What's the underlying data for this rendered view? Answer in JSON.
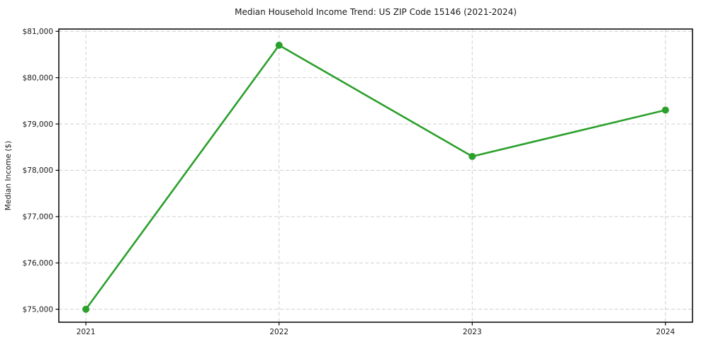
{
  "chart_data": {
    "type": "line",
    "title": "Median Household Income Trend: US ZIP Code 15146 (2021-2024)",
    "xlabel": "",
    "ylabel": "Median Income ($)",
    "x": [
      2021,
      2022,
      2023,
      2024
    ],
    "series": [
      {
        "name": "Median Household Income",
        "values": [
          75000,
          80700,
          78300,
          79300
        ],
        "color": "#2ca02c",
        "marker": "circle"
      }
    ],
    "x_ticks": [
      {
        "value": 2021,
        "label": "2021"
      },
      {
        "value": 2022,
        "label": "2022"
      },
      {
        "value": 2023,
        "label": "2023"
      },
      {
        "value": 2024,
        "label": "2024"
      }
    ],
    "y_ticks": [
      {
        "value": 75000,
        "label": "$75,000"
      },
      {
        "value": 76000,
        "label": "$76,000"
      },
      {
        "value": 77000,
        "label": "$77,000"
      },
      {
        "value": 78000,
        "label": "$78,000"
      },
      {
        "value": 79000,
        "label": "$79,000"
      },
      {
        "value": 80000,
        "label": "$80,000"
      },
      {
        "value": 81000,
        "label": "$81,000"
      }
    ],
    "xlim": [
      2020.86,
      2024.14
    ],
    "ylim": [
      74720,
      81050
    ],
    "grid": true,
    "grid_style": "dashed",
    "grid_color": "#cfcfcf",
    "background": "#ffffff",
    "legend": "none"
  }
}
